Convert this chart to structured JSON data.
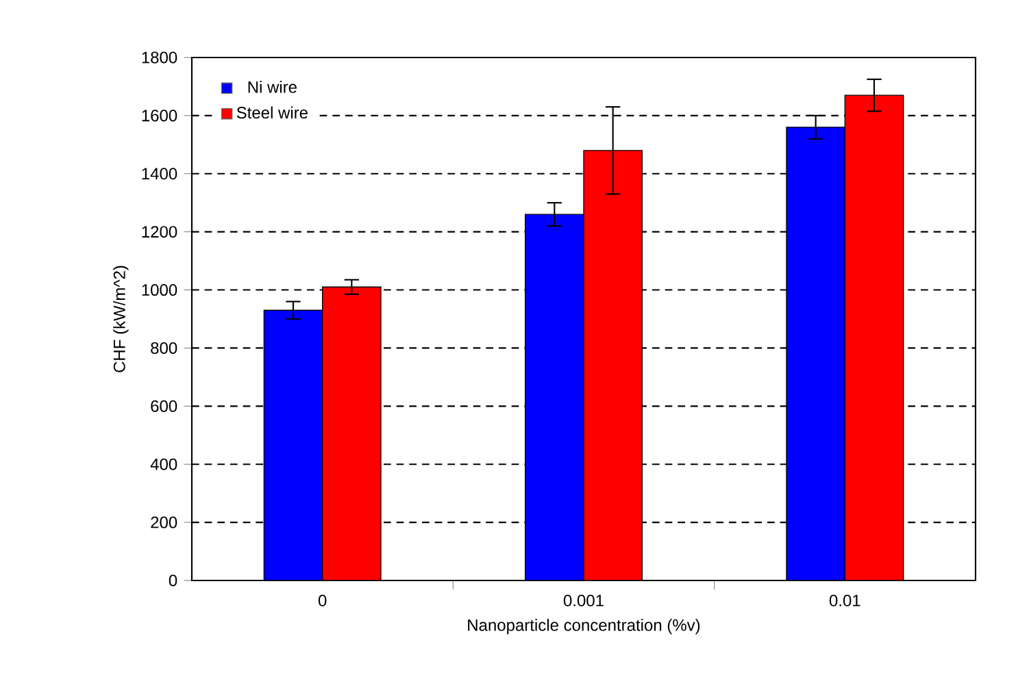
{
  "chart_data": {
    "type": "bar",
    "xlabel": "Nanoparticle concentration (%v)",
    "ylabel": "CHF (kW/m^2)",
    "categories": [
      "0",
      "0.001",
      "0.01"
    ],
    "series": [
      {
        "name": "Ni wire",
        "color": "#0000ff",
        "values": [
          930,
          1260,
          1560
        ],
        "errors": [
          30,
          40,
          40
        ]
      },
      {
        "name": "Steel wire",
        "color": "#ff0000",
        "values": [
          1010,
          1480,
          1670
        ],
        "errors": [
          25,
          150,
          55
        ]
      }
    ],
    "ylim": [
      0,
      1800
    ],
    "yticks": [
      0,
      200,
      400,
      600,
      800,
      1000,
      1200,
      1400,
      1600,
      1800
    ],
    "grid": "y",
    "legend": "top left"
  }
}
